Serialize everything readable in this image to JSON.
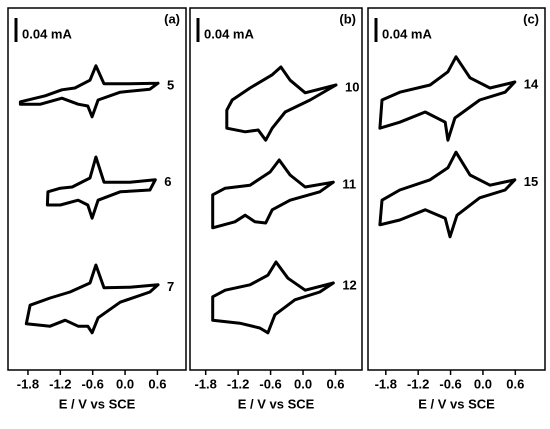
{
  "chart_data": [
    {
      "type": "line",
      "panel_label": "(a)",
      "scale_bar": {
        "value": 0.04,
        "label": "0.04 mA"
      },
      "x_label": "E / V vs SCE",
      "xlim": [
        -2.17,
        1.13
      ],
      "ylim": [
        0,
        0.6
      ],
      "xticks": [
        -1.8,
        -1.2,
        -0.6,
        {
          "value": 0,
          "label": "0.0"
        },
        0.6
      ],
      "series": [
        {
          "name": "5",
          "color": "#000000",
          "x": [
            0.61,
            0.09,
            -0.39,
            -0.54,
            -0.65,
            -0.93,
            -1.17,
            -1.48,
            -1.94,
            -1.94,
            -1.57,
            -1.17,
            -0.87,
            -0.69,
            -0.61,
            -0.5,
            -0.09,
            0.46,
            0.61
          ],
          "values": [
            0.478,
            0.477,
            0.477,
            0.507,
            0.483,
            0.47,
            0.467,
            0.457,
            0.447,
            0.443,
            0.443,
            0.453,
            0.443,
            0.44,
            0.422,
            0.45,
            0.463,
            0.468,
            0.478
          ]
        },
        {
          "name": "6",
          "color": "#000000",
          "x": [
            0.56,
            0.09,
            -0.39,
            -0.54,
            -0.65,
            -0.98,
            -1.2,
            -1.43,
            -1.44,
            -1.2,
            -0.87,
            -0.69,
            -0.61,
            -0.5,
            -0.09,
            0.46,
            0.56
          ],
          "values": [
            0.317,
            0.313,
            0.313,
            0.355,
            0.32,
            0.305,
            0.303,
            0.297,
            0.275,
            0.275,
            0.283,
            0.275,
            0.253,
            0.283,
            0.297,
            0.3,
            0.317
          ]
        },
        {
          "name": "7",
          "color": "#000000",
          "x": [
            0.61,
            0.09,
            -0.39,
            -0.54,
            -0.65,
            -1.02,
            -1.39,
            -1.76,
            -1.83,
            -1.39,
            -1.11,
            -0.87,
            -0.69,
            -0.61,
            -0.5,
            -0.09,
            0.46,
            0.61
          ],
          "values": [
            0.142,
            0.138,
            0.137,
            0.175,
            0.145,
            0.13,
            0.12,
            0.108,
            0.077,
            0.073,
            0.083,
            0.073,
            0.073,
            0.062,
            0.087,
            0.113,
            0.13,
            0.142
          ]
        }
      ]
    },
    {
      "type": "line",
      "panel_label": "(b)",
      "scale_bar": {
        "value": 0.04,
        "label": "0.04 mA"
      },
      "x_label": "E / V vs SCE",
      "xlim": [
        -2.09,
        1.09
      ],
      "ylim": [
        0,
        0.6
      ],
      "xticks": [
        -1.8,
        -1.2,
        -0.6,
        {
          "value": 0,
          "label": "0.0"
        },
        0.6
      ],
      "series": [
        {
          "name": "10",
          "color": "#000000",
          "x": [
            0.61,
            0.04,
            -0.24,
            -0.41,
            -0.57,
            -0.98,
            -1.31,
            -1.41,
            -1.41,
            -1.07,
            -0.83,
            -0.69,
            -0.57,
            -0.33,
            0.13,
            0.61
          ],
          "values": [
            0.475,
            0.462,
            0.483,
            0.505,
            0.492,
            0.47,
            0.45,
            0.433,
            0.403,
            0.397,
            0.4,
            0.383,
            0.403,
            0.43,
            0.45,
            0.475
          ]
        },
        {
          "name": "11",
          "color": "#000000",
          "x": [
            0.56,
            0.04,
            -0.24,
            -0.44,
            -0.61,
            -0.98,
            -1.44,
            -1.67,
            -1.67,
            -1.26,
            -1.07,
            -0.89,
            -0.69,
            -0.57,
            -0.24,
            0.31,
            0.56
          ],
          "values": [
            0.313,
            0.305,
            0.325,
            0.35,
            0.33,
            0.308,
            0.303,
            0.292,
            0.237,
            0.247,
            0.258,
            0.247,
            0.245,
            0.267,
            0.283,
            0.297,
            0.313
          ]
        },
        {
          "name": "12",
          "color": "#000000",
          "x": [
            0.56,
            0.04,
            -0.28,
            -0.5,
            -0.65,
            -0.98,
            -1.44,
            -1.67,
            -1.67,
            -1.17,
            -0.8,
            -0.65,
            -0.52,
            -0.15,
            0.31,
            0.56
          ],
          "values": [
            0.145,
            0.133,
            0.153,
            0.18,
            0.158,
            0.142,
            0.133,
            0.122,
            0.083,
            0.078,
            0.07,
            0.062,
            0.092,
            0.117,
            0.13,
            0.145
          ]
        }
      ]
    },
    {
      "type": "line",
      "panel_label": "(c)",
      "scale_bar": {
        "value": 0.04,
        "label": "0.04 mA"
      },
      "x_label": "E / V vs SCE",
      "xlim": [
        -2.13,
        1.15
      ],
      "ylim": [
        0,
        0.6
      ],
      "xticks": [
        -1.8,
        -1.2,
        -0.6,
        {
          "value": 0,
          "label": "0.0"
        },
        0.6
      ],
      "series": [
        {
          "name": "14",
          "color": "#000000",
          "x": [
            0.59,
            0.13,
            -0.24,
            -0.5,
            -0.65,
            -0.98,
            -1.54,
            -1.87,
            -1.91,
            -1.54,
            -1.07,
            -0.7,
            -0.65,
            -0.52,
            -0.06,
            0.41,
            0.59
          ],
          "values": [
            0.48,
            0.47,
            0.487,
            0.522,
            0.497,
            0.475,
            0.463,
            0.45,
            0.403,
            0.413,
            0.43,
            0.413,
            0.383,
            0.42,
            0.45,
            0.463,
            0.48
          ]
        },
        {
          "name": "15",
          "color": "#000000",
          "x": [
            0.59,
            0.13,
            -0.24,
            -0.5,
            -0.65,
            -0.98,
            -1.54,
            -1.87,
            -1.91,
            -1.54,
            -1.07,
            -0.7,
            -0.61,
            -0.48,
            -0.06,
            0.41,
            0.59
          ],
          "values": [
            0.317,
            0.308,
            0.325,
            0.363,
            0.337,
            0.317,
            0.3,
            0.283,
            0.242,
            0.25,
            0.267,
            0.253,
            0.222,
            0.258,
            0.287,
            0.3,
            0.317
          ]
        }
      ]
    }
  ]
}
